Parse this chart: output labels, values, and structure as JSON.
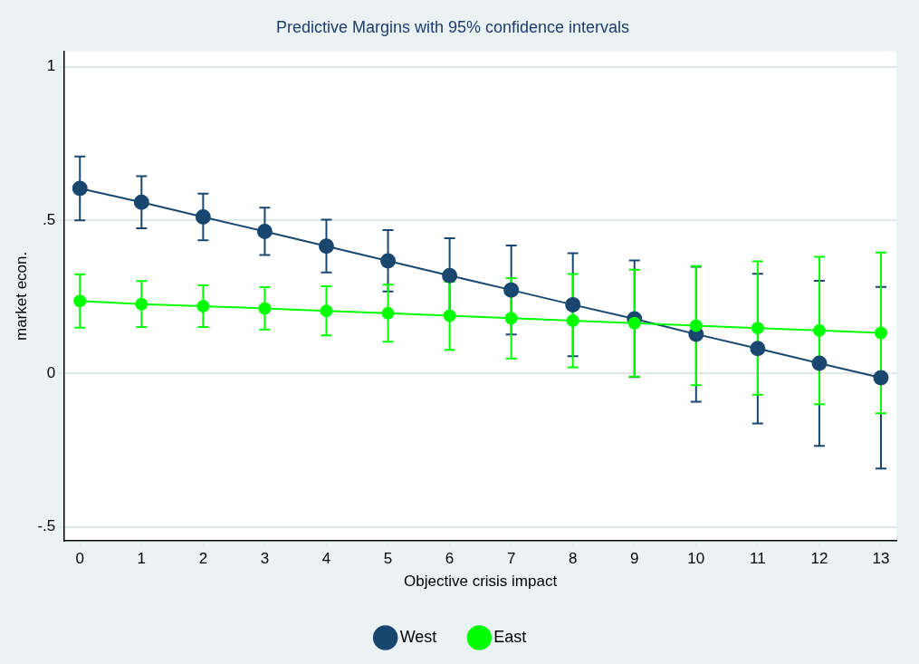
{
  "chart_data": {
    "type": "line",
    "title": "Predictive Margins with 95% confidence intervals",
    "xlabel": "Objective crisis impact",
    "ylabel": "market econ.",
    "x": [
      0,
      1,
      2,
      3,
      4,
      5,
      6,
      7,
      8,
      9,
      10,
      11,
      12,
      13
    ],
    "series": [
      {
        "name": "West",
        "color": "#1a476f",
        "values": [
          0.603,
          0.558,
          0.51,
          0.463,
          0.415,
          0.367,
          0.319,
          0.272,
          0.224,
          0.178,
          0.128,
          0.081,
          0.033,
          -0.014
        ],
        "errors": [
          0.104,
          0.085,
          0.076,
          0.077,
          0.086,
          0.1,
          0.122,
          0.145,
          0.168,
          0.19,
          0.22,
          0.244,
          0.269,
          0.296
        ]
      },
      {
        "name": "East",
        "color": "#00ff00",
        "values": [
          0.236,
          0.226,
          0.219,
          0.212,
          0.204,
          0.196,
          0.188,
          0.18,
          0.172,
          0.164,
          0.156,
          0.148,
          0.14,
          0.132
        ],
        "errors": [
          0.087,
          0.075,
          0.068,
          0.069,
          0.08,
          0.093,
          0.111,
          0.131,
          0.152,
          0.174,
          0.194,
          0.217,
          0.24,
          0.262
        ]
      }
    ],
    "xlim": [
      -0.25,
      13.25
    ],
    "xticks": [
      0,
      1,
      2,
      3,
      4,
      5,
      6,
      7,
      8,
      9,
      10,
      11,
      12,
      13
    ],
    "ylim": [
      -0.546,
      1.05
    ],
    "yticks": [
      {
        "value": -0.5,
        "label": "-.5"
      },
      {
        "value": 0,
        "label": "0"
      },
      {
        "value": 0.5,
        "label": ".5"
      },
      {
        "value": 1,
        "label": "1"
      }
    ],
    "grid": "y",
    "legend": "bottom",
    "marker": "circle",
    "line_style": "solid"
  }
}
